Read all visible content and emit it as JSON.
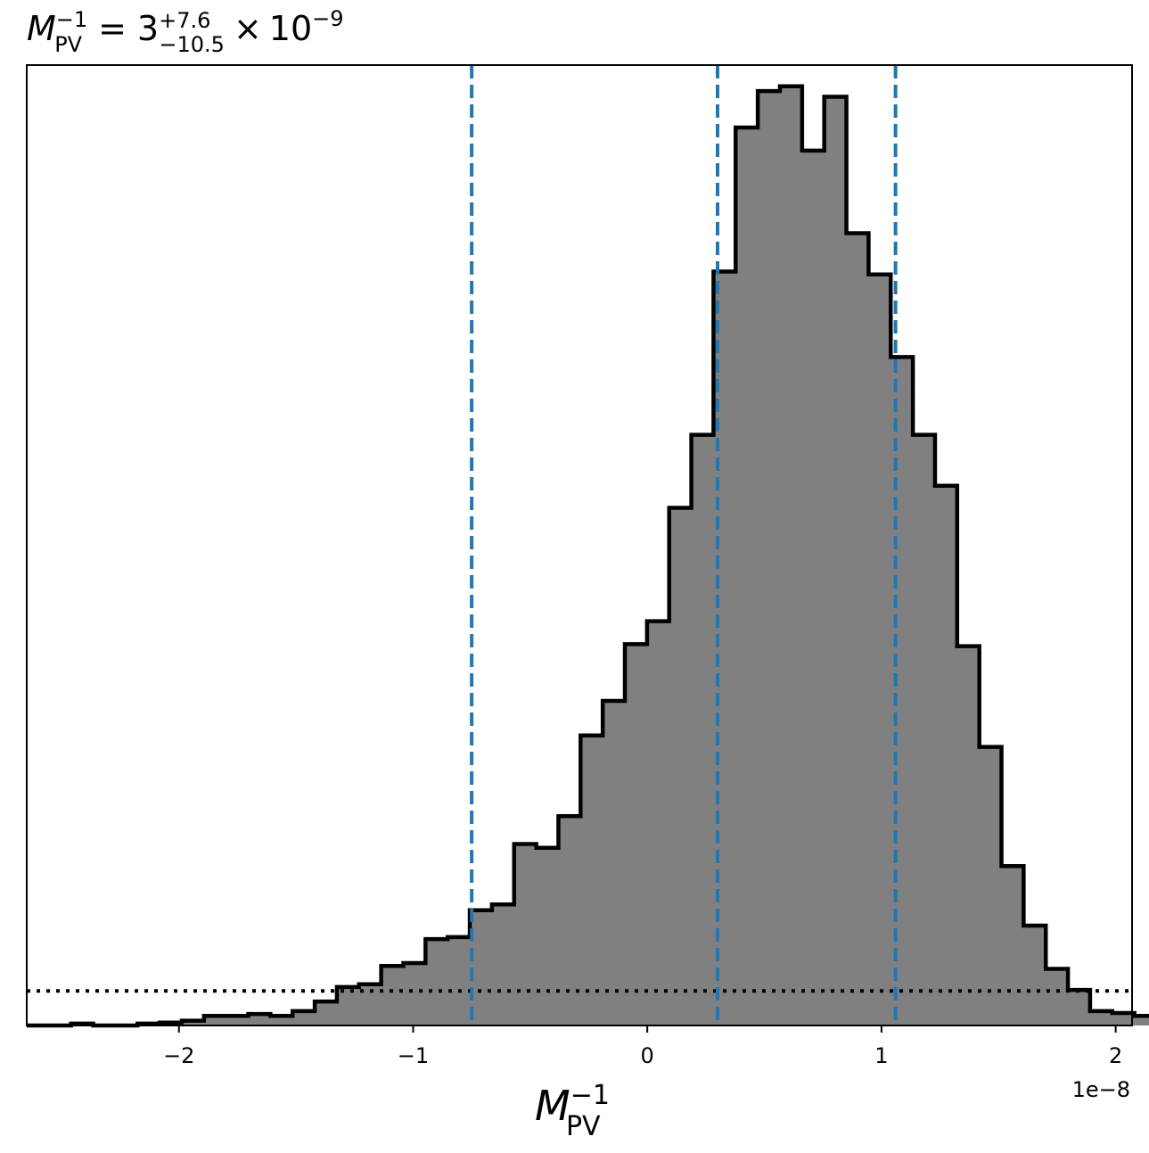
{
  "chart_data": {
    "type": "histogram",
    "title": {
      "symbol": "M",
      "subscript": "PV",
      "superscript": "−1",
      "equals": "=",
      "value": "3",
      "upper": "+7.6",
      "lower": "−10.5",
      "times": "×",
      "base": "10",
      "exponent": "−9"
    },
    "xlabel": {
      "symbol": "M",
      "subscript": "PV",
      "superscript": "−1"
    },
    "ylabel": "",
    "x_offset_text": "1e−8",
    "xlim": [
      -2.65,
      2.07
    ],
    "ylim": [
      0,
      1.0
    ],
    "xticks": [
      {
        "value": -2,
        "label": "−2"
      },
      {
        "value": -1,
        "label": "−1"
      },
      {
        "value": 0,
        "label": "0"
      },
      {
        "value": 1,
        "label": "1"
      },
      {
        "value": 2,
        "label": "2"
      }
    ],
    "bin_start": -2.65,
    "bin_width": 0.0946,
    "bin_heights": [
      0.0,
      0.0,
      0.002,
      0.0,
      0.0,
      0.002,
      0.003,
      0.005,
      0.01,
      0.01,
      0.012,
      0.01,
      0.015,
      0.025,
      0.04,
      0.043,
      0.062,
      0.065,
      0.09,
      0.092,
      0.12,
      0.126,
      0.189,
      0.185,
      0.218,
      0.302,
      0.338,
      0.397,
      0.421,
      0.539,
      0.615,
      0.785,
      0.935,
      0.973,
      0.978,
      0.911,
      0.967,
      0.825,
      0.782,
      0.696,
      0.615,
      0.562,
      0.395,
      0.29,
      0.166,
      0.104,
      0.059,
      0.037,
      0.015,
      0.013,
      0.01,
      0.008,
      0.003,
      0.0
    ],
    "bar_fill": "#808080",
    "bar_edge": "#000000",
    "vlines": [
      {
        "name": "lower-bound",
        "x": -0.75,
        "style": "dashed",
        "color": "#1f77b4"
      },
      {
        "name": "median",
        "x": 0.3,
        "style": "dashed",
        "color": "#1f77b4"
      },
      {
        "name": "upper-bound",
        "x": 1.06,
        "style": "dashed",
        "color": "#1f77b4"
      }
    ],
    "hline": {
      "y": 0.036,
      "style": "dotted",
      "color": "#000000"
    },
    "grid": false,
    "legend": "none"
  }
}
